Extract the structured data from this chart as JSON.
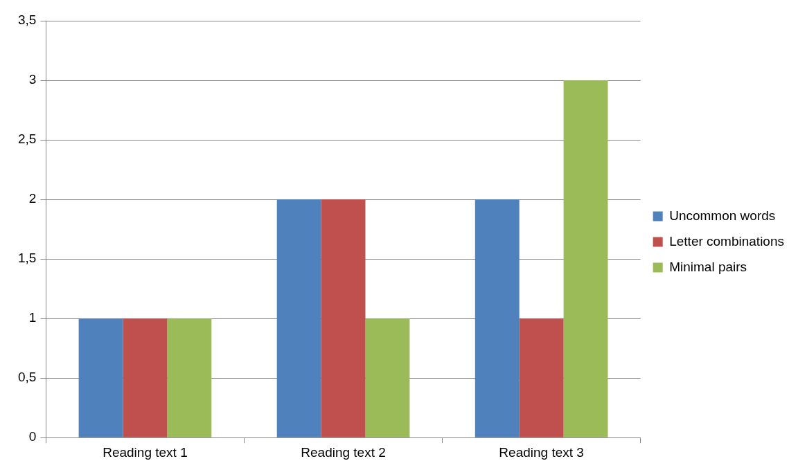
{
  "chart_data": {
    "type": "bar",
    "categories": [
      "Reading text 1",
      "Reading text 2",
      "Reading text 3"
    ],
    "series": [
      {
        "name": "Uncommon words",
        "color": "#4f81bd",
        "values": [
          1,
          2,
          2
        ]
      },
      {
        "name": "Letter combinations",
        "color": "#c0504d",
        "values": [
          1,
          2,
          1
        ]
      },
      {
        "name": "Minimal pairs",
        "color": "#9bbb59",
        "values": [
          1,
          1,
          3
        ]
      }
    ],
    "ylim": [
      0,
      3.5
    ],
    "yticks": [
      0,
      {
        "value": 0.5,
        "label": "0,5"
      },
      1,
      {
        "value": 1.5,
        "label": "1,5"
      },
      2,
      {
        "value": 2.5,
        "label": "2,5"
      },
      3,
      {
        "value": 3.5,
        "label": "3,5"
      }
    ],
    "grid": "y",
    "legend": "right"
  }
}
